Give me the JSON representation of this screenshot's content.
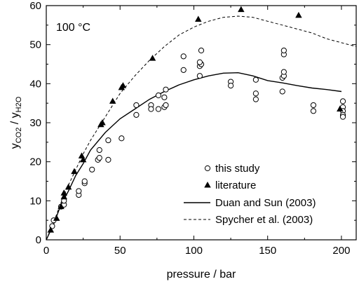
{
  "chart_data": {
    "type": "scatter",
    "annotation": "100 °C",
    "xlabel": "pressure / bar",
    "ylabel": {
      "base": "y",
      "sub1": "CO2",
      "sep": " / y",
      "sub2": "H2O"
    },
    "xlim": [
      0,
      210
    ],
    "ylim": [
      0,
      60
    ],
    "xticks": [
      0,
      50,
      100,
      150,
      200
    ],
    "yticks": [
      0,
      10,
      20,
      30,
      40,
      50,
      60
    ],
    "legend_position": "lower-right",
    "series": [
      {
        "name": "this study",
        "style": "open-circle",
        "points": [
          [
            4,
            3.5
          ],
          [
            5,
            5
          ],
          [
            10,
            8.5
          ],
          [
            12,
            9
          ],
          [
            12,
            10
          ],
          [
            22,
            11.5
          ],
          [
            22,
            12.5
          ],
          [
            26,
            14.5
          ],
          [
            26,
            15
          ],
          [
            31,
            18
          ],
          [
            35,
            20.5
          ],
          [
            36,
            21
          ],
          [
            36,
            23
          ],
          [
            42,
            20.5
          ],
          [
            42,
            25.5
          ],
          [
            51,
            26
          ],
          [
            61,
            32
          ],
          [
            61,
            34.5
          ],
          [
            71,
            34.5
          ],
          [
            71,
            33.5
          ],
          [
            76,
            33.5
          ],
          [
            76,
            37
          ],
          [
            80,
            34
          ],
          [
            80,
            36.5
          ],
          [
            81,
            34.5
          ],
          [
            81,
            38.5
          ],
          [
            93,
            43.5
          ],
          [
            93,
            47
          ],
          [
            104,
            42
          ],
          [
            104,
            44.5
          ],
          [
            105,
            45
          ],
          [
            105,
            45
          ],
          [
            105,
            48.5
          ],
          [
            104,
            45.5
          ],
          [
            125,
            40.5
          ],
          [
            125,
            39.5
          ],
          [
            142,
            41
          ],
          [
            142,
            37.5
          ],
          [
            142,
            36
          ],
          [
            160,
            38
          ],
          [
            160,
            41.5
          ],
          [
            161,
            42
          ],
          [
            161,
            43
          ],
          [
            161,
            47.5
          ],
          [
            161,
            48.5
          ],
          [
            181,
            34.5
          ],
          [
            181,
            33
          ],
          [
            201,
            35.5
          ],
          [
            201,
            34
          ],
          [
            201,
            33
          ],
          [
            201,
            32
          ],
          [
            201,
            31.5
          ]
        ]
      },
      {
        "name": "literature",
        "style": "filled-triangle",
        "points": [
          [
            3,
            2.5
          ],
          [
            7,
            5.5
          ],
          [
            10,
            8.5
          ],
          [
            12,
            11
          ],
          [
            12,
            12
          ],
          [
            15,
            13.5
          ],
          [
            19,
            17.5
          ],
          [
            24,
            21.5
          ],
          [
            25,
            20.5
          ],
          [
            37,
            29.5
          ],
          [
            38,
            30
          ],
          [
            45,
            35.5
          ],
          [
            51,
            39
          ],
          [
            52,
            39.5
          ],
          [
            72,
            46.5
          ],
          [
            103,
            56.5
          ],
          [
            132,
            59
          ],
          [
            171,
            57.5
          ],
          [
            199,
            33.5
          ]
        ]
      },
      {
        "name": "Duan and Sun (2003)",
        "style": "solid-line",
        "points": [
          [
            0,
            0
          ],
          [
            5,
            4
          ],
          [
            10,
            9
          ],
          [
            15,
            12.5
          ],
          [
            20,
            16.5
          ],
          [
            25,
            19.5
          ],
          [
            30,
            23
          ],
          [
            40,
            27.5
          ],
          [
            50,
            31
          ],
          [
            60,
            33.5
          ],
          [
            70,
            36
          ],
          [
            80,
            38
          ],
          [
            90,
            39.7
          ],
          [
            100,
            41
          ],
          [
            110,
            42
          ],
          [
            120,
            42.7
          ],
          [
            130,
            42.8
          ],
          [
            140,
            42
          ],
          [
            150,
            40.8
          ],
          [
            160,
            40.2
          ],
          [
            170,
            39.5
          ],
          [
            180,
            38.9
          ],
          [
            190,
            38.5
          ],
          [
            200,
            38
          ]
        ]
      },
      {
        "name": "Spycher et al. (2003)",
        "style": "dashed-line",
        "points": [
          [
            0,
            0
          ],
          [
            5,
            4.5
          ],
          [
            10,
            9.5
          ],
          [
            15,
            14
          ],
          [
            20,
            18
          ],
          [
            25,
            22
          ],
          [
            30,
            25.5
          ],
          [
            35,
            28.5
          ],
          [
            40,
            31.5
          ],
          [
            45,
            34.5
          ],
          [
            50,
            37.5
          ],
          [
            60,
            42
          ],
          [
            70,
            46
          ],
          [
            80,
            49.5
          ],
          [
            90,
            52.5
          ],
          [
            100,
            54.5
          ],
          [
            110,
            56
          ],
          [
            120,
            57
          ],
          [
            130,
            57.3
          ],
          [
            140,
            57
          ],
          [
            150,
            56
          ],
          [
            160,
            55
          ],
          [
            170,
            54
          ],
          [
            180,
            53
          ],
          [
            190,
            51.5
          ],
          [
            200,
            50.5
          ],
          [
            210,
            49.5
          ]
        ]
      }
    ]
  },
  "colors": {
    "axis": "#000000",
    "series": "#000000",
    "dashed": "#333333",
    "background": "#ffffff"
  }
}
